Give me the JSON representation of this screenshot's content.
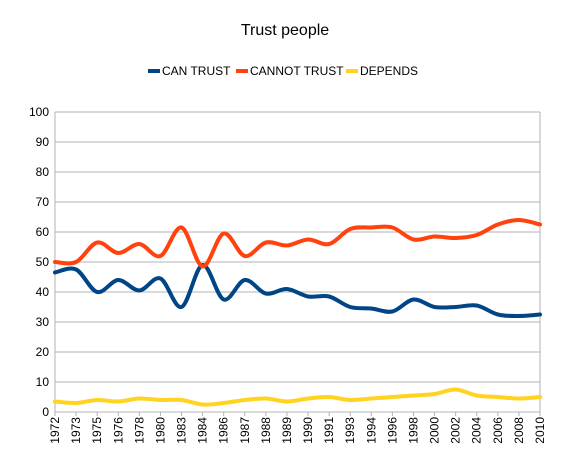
{
  "chart_data": {
    "type": "line",
    "title": "Trust people",
    "categories": [
      "1972",
      "1973",
      "1975",
      "1976",
      "1978",
      "1980",
      "1983",
      "1984",
      "1986",
      "1987",
      "1988",
      "1989",
      "1990",
      "1991",
      "1993",
      "1994",
      "1996",
      "1998",
      "2000",
      "2002",
      "2004",
      "2006",
      "2008",
      "2010"
    ],
    "series": [
      {
        "name": "CAN TRUST",
        "color": "#004586",
        "values": [
          46.5,
          47.5,
          40,
          44,
          40.5,
          44.5,
          35,
          49,
          37.5,
          44,
          39.5,
          41,
          38.5,
          38.5,
          35,
          34.5,
          33.5,
          37.5,
          35,
          35,
          35.5,
          32.5,
          32,
          32.5
        ]
      },
      {
        "name": "CANNOT TRUST",
        "color": "#ff420e",
        "values": [
          50,
          50,
          56.5,
          53,
          56,
          52,
          61.5,
          48.5,
          59.5,
          52,
          56.5,
          55.5,
          57.5,
          56,
          61,
          61.5,
          61.5,
          57.5,
          58.5,
          58,
          59,
          62.5,
          64,
          62.5
        ]
      },
      {
        "name": "DEPENDS",
        "color": "#ffd320",
        "values": [
          3.5,
          3,
          4,
          3.5,
          4.5,
          4,
          4,
          2.5,
          3,
          4,
          4.5,
          3.5,
          4.5,
          5,
          4,
          4.5,
          5,
          5.5,
          6,
          7.5,
          5.5,
          5,
          4.5,
          5
        ]
      }
    ],
    "yticks": [
      "0",
      "10",
      "20",
      "30",
      "40",
      "50",
      "60",
      "70",
      "80",
      "90",
      "100"
    ],
    "ylim": [
      0,
      100
    ],
    "grid": true,
    "legend_position": "top"
  }
}
